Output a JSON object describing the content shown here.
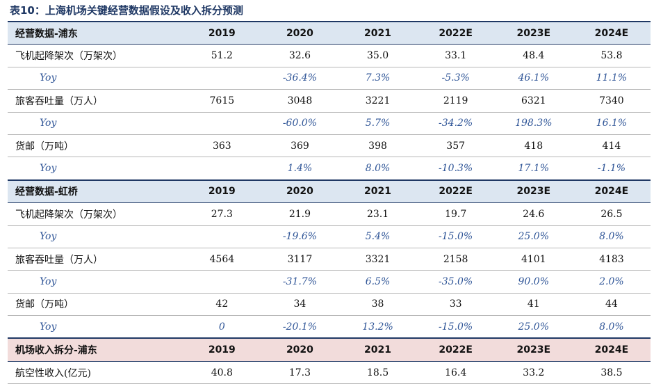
{
  "title": "表10：上海机场关键经营数据假设及收入拆分预测",
  "sections": [
    {
      "name": "经营数据-浦东",
      "years": [
        "2019",
        "2020",
        "2021",
        "2022E",
        "2023E",
        "2024E"
      ],
      "rows": [
        {
          "label": "飞机起降架次（万架次）",
          "values": [
            "51.2",
            "32.6",
            "35.0",
            "33.1",
            "48.4",
            "53.8"
          ]
        },
        {
          "label": "Yoy",
          "values": [
            "",
            "-36.4%",
            "7.3%",
            "-5.3%",
            "46.1%",
            "11.1%"
          ]
        },
        {
          "label": "旅客吞吐量（万人）",
          "values": [
            "7615",
            "3048",
            "3221",
            "2119",
            "6321",
            "7340"
          ]
        },
        {
          "label": "Yoy",
          "values": [
            "",
            "-60.0%",
            "5.7%",
            "-34.2%",
            "198.3%",
            "16.1%"
          ]
        },
        {
          "label": "货邮（万吨）",
          "values": [
            "363",
            "369",
            "398",
            "357",
            "418",
            "414"
          ]
        },
        {
          "label": "Yoy",
          "values": [
            "",
            "1.4%",
            "8.0%",
            "-10.3%",
            "17.1%",
            "-1.1%"
          ]
        }
      ]
    },
    {
      "name": "经营数据-虹桥",
      "years": [
        "2019",
        "2020",
        "2021",
        "2022E",
        "2023E",
        "2024E"
      ],
      "rows": [
        {
          "label": "飞机起降架次（万架次）",
          "values": [
            "27.3",
            "21.9",
            "23.1",
            "19.7",
            "24.6",
            "26.5"
          ]
        },
        {
          "label": "Yoy",
          "values": [
            "",
            "-19.6%",
            "5.4%",
            "-15.0%",
            "25.0%",
            "8.0%"
          ]
        },
        {
          "label": "旅客吞吐量（万人）",
          "values": [
            "4564",
            "3117",
            "3321",
            "2158",
            "4101",
            "4183"
          ]
        },
        {
          "label": "Yoy",
          "values": [
            "",
            "-31.7%",
            "6.5%",
            "-35.0%",
            "90.0%",
            "2.0%"
          ]
        },
        {
          "label": "货邮（万吨）",
          "values": [
            "42",
            "34",
            "38",
            "33",
            "41",
            "44"
          ]
        },
        {
          "label": "Yoy",
          "values": [
            "0",
            "-20.1%",
            "13.2%",
            "-15.0%",
            "25.0%",
            "8.0%"
          ]
        }
      ]
    },
    {
      "name": "机场收入拆分-浦东",
      "years": [
        "2019",
        "2020",
        "2021",
        "2022E",
        "2023E",
        "2024E"
      ],
      "rows": [
        {
          "label": "航空性收入(亿元)",
          "values": [
            "40.8",
            "17.3",
            "18.5",
            "16.4",
            "33.2",
            "38.5"
          ]
        }
      ]
    }
  ]
}
